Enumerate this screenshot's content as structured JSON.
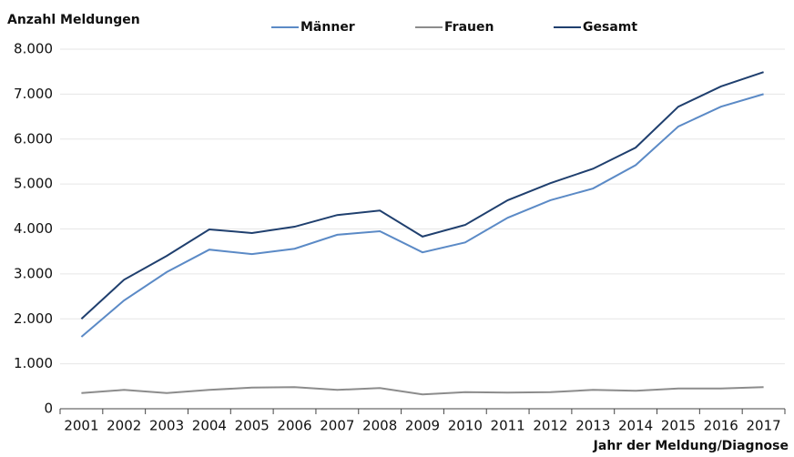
{
  "chart_data": {
    "type": "line",
    "y_label": "Anzahl Meldungen",
    "x_label": "Jahr der Meldung/Diagnose",
    "categories": [
      "2001",
      "2002",
      "2003",
      "2004",
      "2005",
      "2006",
      "2007",
      "2008",
      "2009",
      "2010",
      "2011",
      "2012",
      "2013",
      "2014",
      "2015",
      "2016",
      "2017"
    ],
    "series": [
      {
        "name": "Männer",
        "color": "#5b8ac6",
        "values": [
          1600,
          2410,
          3040,
          3540,
          3440,
          3560,
          3870,
          3950,
          3480,
          3700,
          4250,
          4640,
          4900,
          5420,
          6280,
          6720,
          7000
        ]
      },
      {
        "name": "Frauen",
        "color": "#8c8c8c",
        "values": [
          350,
          420,
          350,
          420,
          470,
          480,
          420,
          460,
          320,
          370,
          360,
          370,
          420,
          400,
          450,
          450,
          480
        ]
      },
      {
        "name": "Gesamt",
        "color": "#1f3f6e",
        "values": [
          2000,
          2870,
          3400,
          3990,
          3910,
          4050,
          4310,
          4410,
          3830,
          4090,
          4640,
          5020,
          5340,
          5810,
          6720,
          7170,
          7490
        ]
      }
    ],
    "ylim": [
      0,
      8000
    ],
    "yticks": [
      0,
      {
        "value": 1000,
        "label": "1.000"
      },
      {
        "value": 2000,
        "label": "2.000"
      },
      {
        "value": 3000,
        "label": "3.000"
      },
      {
        "value": 4000,
        "label": "4.000"
      },
      {
        "value": 5000,
        "label": "5.000"
      },
      {
        "value": 6000,
        "label": "6.000"
      },
      {
        "value": 7000,
        "label": "7.000"
      },
      {
        "value": 8000,
        "label": "8.000"
      }
    ],
    "grid": true,
    "legend": "top"
  }
}
